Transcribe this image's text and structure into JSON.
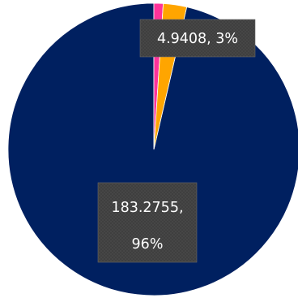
{
  "chart_data": {
    "type": "pie",
    "title": "",
    "slices": [
      {
        "label": "183.2755, 96%",
        "value": 183.2755,
        "percent": 96,
        "color": "#002060"
      },
      {
        "label": "",
        "value": 1.95,
        "percent": 1,
        "color": "#ff3399"
      },
      {
        "label": "4.9408, 3%",
        "value": 4.9408,
        "percent": 3,
        "color": "#ffa500"
      }
    ],
    "data_labels": [
      {
        "lines": [
          "4.9408, 3%"
        ]
      },
      {
        "lines": [
          "183.2755,",
          "96%"
        ]
      }
    ],
    "legend": "none"
  }
}
